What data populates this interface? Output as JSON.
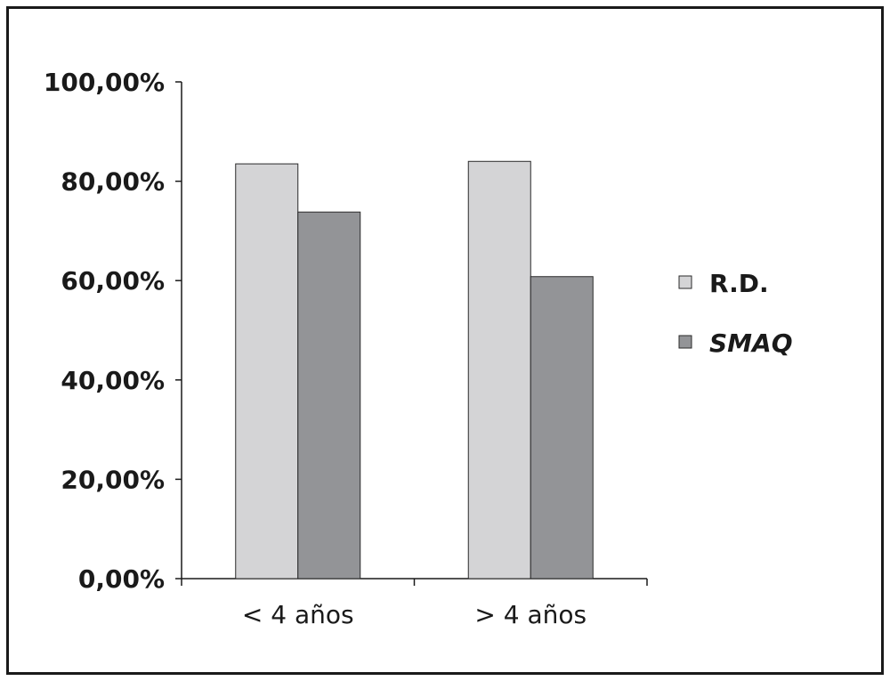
{
  "chart_data": {
    "type": "bar",
    "categories": [
      "< 4 años",
      "> 4 años"
    ],
    "series": [
      {
        "name": "R.D.",
        "values": [
          83.5,
          84.0
        ],
        "color": "#d4d4d6"
      },
      {
        "name": "SMAQ",
        "values": [
          73.8,
          60.8
        ],
        "color": "#939497"
      }
    ],
    "y_ticks": [
      "0,00%",
      "20,00%",
      "40,00%",
      "60,00%",
      "80,00%",
      "100,00%"
    ],
    "ylim": [
      0,
      100
    ],
    "legend_position": "right",
    "grid": false
  }
}
